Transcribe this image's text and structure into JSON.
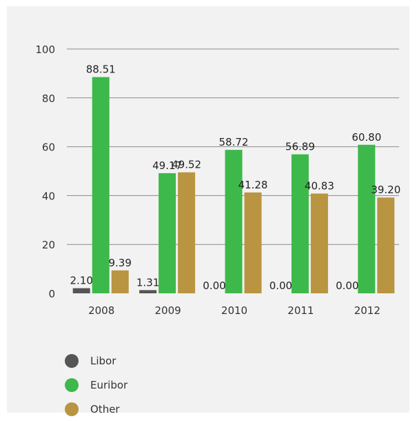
{
  "chart_data": {
    "type": "bar",
    "categories": [
      "2008",
      "2009",
      "2010",
      "2011",
      "2012"
    ],
    "series": [
      {
        "name": "Libor",
        "color": "#555555",
        "values": [
          2.1,
          1.31,
          0.0,
          0.0,
          0.0
        ],
        "labels": [
          "2.10",
          "1.31",
          "0.00",
          "0.00",
          "0.00"
        ]
      },
      {
        "name": "Euribor",
        "color": "#3cb94a",
        "values": [
          88.51,
          49.17,
          58.72,
          56.89,
          60.8
        ],
        "labels": [
          "88.51",
          "49.17",
          "58.72",
          "56.89",
          "60.80"
        ]
      },
      {
        "name": "Other",
        "color": "#b99541",
        "values": [
          9.39,
          49.52,
          41.28,
          40.83,
          39.2
        ],
        "labels": [
          "9.39",
          "49.52",
          "41.28",
          "40.83",
          "39.20"
        ]
      }
    ],
    "y_ticks": [
      "0",
      "20",
      "40",
      "60",
      "80",
      "100"
    ],
    "ylim": [
      0,
      100
    ],
    "grid": true,
    "legend_position": "bottom-left"
  }
}
